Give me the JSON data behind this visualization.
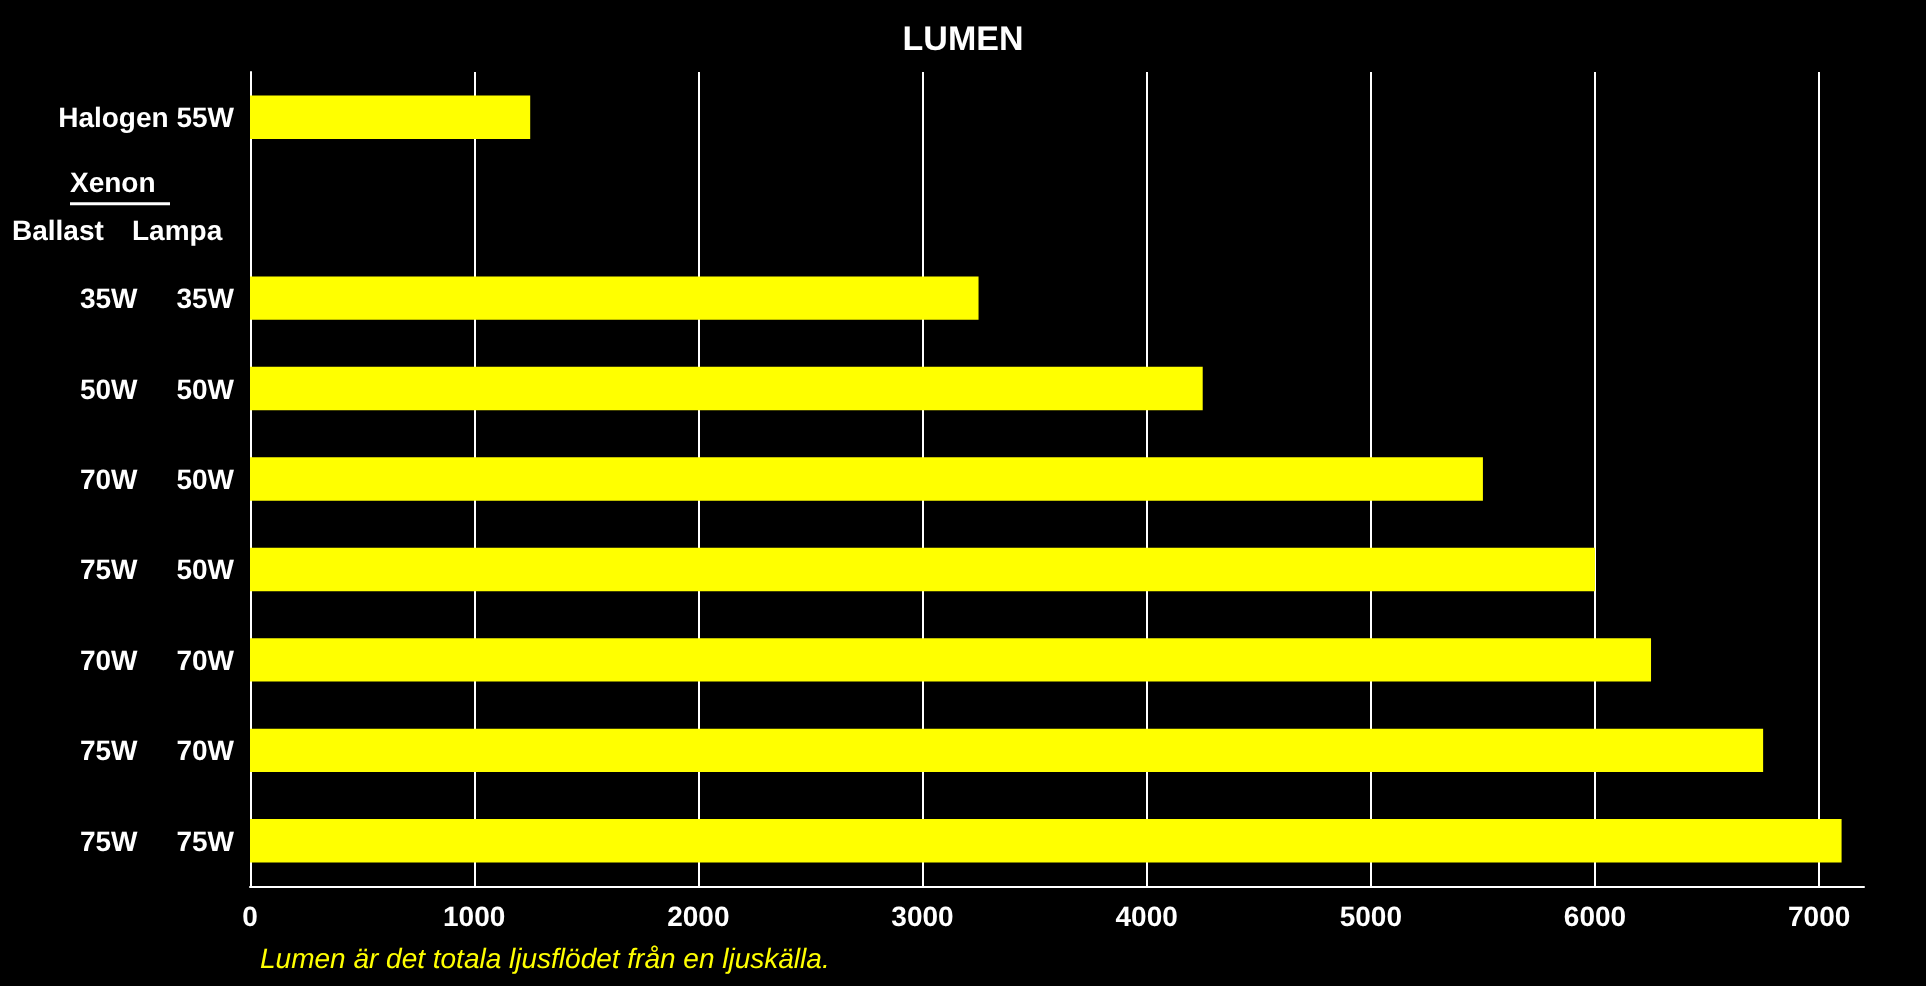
{
  "chart_data": {
    "type": "bar",
    "orientation": "horizontal",
    "title": "LUMEN",
    "categories": [
      "Halogen 55W",
      null,
      "35W     35W",
      "50W     50W",
      "70W     50W",
      "75W     50W",
      "70W     70W",
      "75W     70W",
      "75W     75W"
    ],
    "values": [
      1250,
      null,
      3250,
      4250,
      5500,
      6000,
      6250,
      6750,
      7100
    ],
    "color": "#ffff00",
    "xlim": [
      0,
      7200
    ],
    "xticks": [
      0,
      1000,
      2000,
      3000,
      4000,
      5000,
      6000,
      7000
    ],
    "grid": "x",
    "annotations": [
      "Xenon",
      "Ballast",
      "Lampa",
      "Lumen är det totala ljusflödet från en ljuskälla."
    ]
  }
}
